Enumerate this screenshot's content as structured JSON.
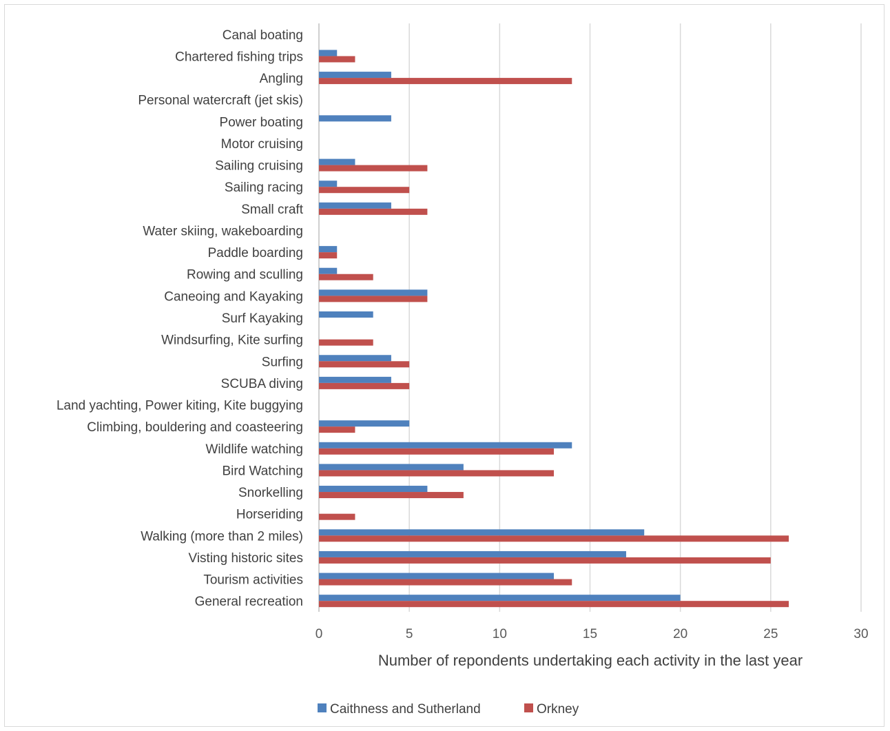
{
  "chart_data": {
    "type": "bar",
    "orientation": "horizontal",
    "title": "",
    "xlabel": "Number of repondents undertaking each activity in the last year",
    "ylabel": "",
    "xlim": [
      0,
      30
    ],
    "x_ticks": [
      0,
      5,
      10,
      15,
      20,
      25,
      30
    ],
    "grid": "vertical gridlines",
    "legend": "bottom",
    "categories": [
      "Canal boating",
      "Chartered fishing trips",
      "Angling",
      "Personal watercraft (jet skis)",
      "Power boating",
      "Motor cruising",
      "Sailing cruising",
      "Sailing racing",
      "Small craft",
      "Water skiing, wakeboarding",
      "Paddle boarding",
      "Rowing and sculling",
      "Caneoing and Kayaking",
      "Surf Kayaking",
      "Windsurfing, Kite surfing",
      "Surfing",
      "SCUBA diving",
      "Land yachting, Power kiting, Kite buggying",
      "Climbing, bouldering and coasteering",
      "Wildlife watching",
      "Bird Watching",
      "Snorkelling",
      "Horseriding",
      "Walking (more than 2 miles)",
      "Visting historic sites",
      "Tourism activities",
      "General recreation"
    ],
    "series": [
      {
        "name": "Caithness and Sutherland",
        "color": "#4f81bd",
        "values": [
          0,
          1,
          4,
          0,
          4,
          0,
          2,
          1,
          4,
          0,
          1,
          1,
          6,
          3,
          0,
          4,
          4,
          0,
          5,
          14,
          8,
          6,
          0,
          18,
          17,
          13,
          20
        ]
      },
      {
        "name": "Orkney",
        "color": "#c0504d",
        "values": [
          0,
          2,
          14,
          0,
          0,
          0,
          6,
          5,
          6,
          0,
          1,
          3,
          6,
          0,
          3,
          5,
          5,
          0,
          2,
          13,
          13,
          8,
          2,
          26,
          25,
          14,
          26
        ]
      }
    ]
  }
}
